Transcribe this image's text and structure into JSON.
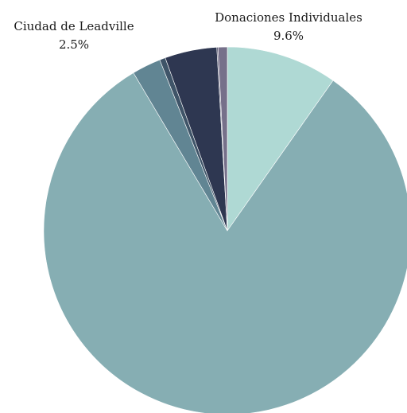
{
  "chart_data": {
    "type": "pie",
    "start_angle_deg": 0,
    "direction": "clockwise",
    "slices": [
      {
        "label": "Donaciones Individuales",
        "value": 9.6,
        "value_label": "9.6%",
        "color": "#afd9d4",
        "show_label": true
      },
      {
        "label": "",
        "value": 80.3,
        "value_label": "",
        "color": "#86aeb3",
        "show_label": false
      },
      {
        "label": "Ciudad de Leadville",
        "value": 2.5,
        "value_label": "2.5%",
        "color": "#618593",
        "show_label": true
      },
      {
        "label": "",
        "value": 0.5,
        "value_label": "",
        "color": "#3f5468",
        "show_label": false
      },
      {
        "label": "",
        "value": 4.5,
        "value_label": "",
        "color": "#2e3751",
        "show_label": false
      },
      {
        "label": "",
        "value": 0.1,
        "value_label": "",
        "color": "#4d4a66",
        "show_label": false
      },
      {
        "label": "",
        "value": 0.8,
        "value_label": "",
        "color": "#76708a",
        "show_label": false
      }
    ]
  }
}
